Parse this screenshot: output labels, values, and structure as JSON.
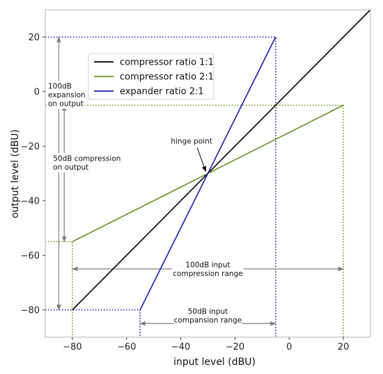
{
  "chart_data": {
    "type": "line",
    "title": "",
    "xlabel": "input level (dBU)",
    "ylabel": "output level (dBU)",
    "xlim": [
      -90,
      30
    ],
    "ylim": [
      -90,
      30
    ],
    "xticks": [
      -80,
      -60,
      -40,
      -20,
      0,
      20
    ],
    "yticks": [
      -80,
      -60,
      -40,
      -20,
      0,
      20
    ],
    "xtick_labels": [
      "−80",
      "−60",
      "−40",
      "−20",
      "0",
      "20"
    ],
    "ytick_labels": [
      "−80",
      "−60",
      "−40",
      "−20",
      "0",
      "20"
    ],
    "grid": false,
    "legend_position": "upper-left",
    "series": [
      {
        "name": "compressor ratio 1:1",
        "color": "#000000",
        "x": [
          -80,
          30
        ],
        "y": [
          -80,
          30
        ]
      },
      {
        "name": "compressor ratio 2:1",
        "color": "#6b8e23",
        "x": [
          -80,
          20
        ],
        "y": [
          -55,
          -5
        ]
      },
      {
        "name": "expander ratio 2:1",
        "color": "#1a1aaf",
        "x": [
          -55,
          -5
        ],
        "y": [
          -80,
          20
        ]
      }
    ],
    "guides": [
      {
        "color": "#1a1aaf",
        "x": [
          -90,
          -5,
          -5
        ],
        "y": [
          20,
          20,
          -90
        ]
      },
      {
        "color": "#1a1aaf",
        "x": [
          -90,
          -55,
          -55
        ],
        "y": [
          -80,
          -80,
          -90
        ]
      },
      {
        "color": "#6b8e23",
        "x": [
          -90,
          20,
          20
        ],
        "y": [
          -5,
          -5,
          -90
        ]
      },
      {
        "color": "#6b8e23",
        "x": [
          -90,
          -80,
          -80
        ],
        "y": [
          -55,
          -55,
          -90
        ]
      }
    ],
    "annotations": {
      "hinge": {
        "text": "hinge point",
        "point": [
          -30,
          -30
        ],
        "text_at": [
          -36,
          -18
        ]
      },
      "expansion_output": {
        "lines": [
          "100dB",
          "expansion",
          "on output"
        ],
        "from": [
          -85,
          20
        ],
        "to": [
          -85,
          -80
        ]
      },
      "compression_output": {
        "lines": [
          "50dB compression",
          "on output"
        ],
        "from": [
          -83,
          -5
        ],
        "to": [
          -83,
          -55
        ]
      },
      "compression_range": {
        "lines": [
          "100dB input",
          "compression range"
        ],
        "from": [
          -80,
          -65
        ],
        "to": [
          20,
          -65
        ]
      },
      "compansion_range": {
        "lines": [
          "50dB input",
          "compansion range"
        ],
        "from": [
          -55,
          -85
        ],
        "to": [
          -5,
          -85
        ]
      }
    }
  }
}
